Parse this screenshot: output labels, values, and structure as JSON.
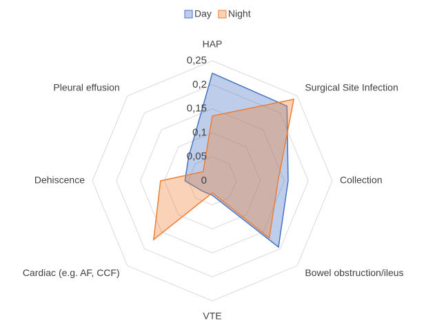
{
  "chart_data": {
    "type": "radar",
    "categories": [
      "HAP",
      "Surgical Site Infection",
      "Collection",
      "Bowel obstruction/ileus",
      "VTE",
      "Cardiac (e.g. AF, CCF)",
      "Dehiscence",
      "Pleural effusion"
    ],
    "series": [
      {
        "name": "Day",
        "color": "#4472c4",
        "values": [
          0.224,
          0.22,
          0.158,
          0.195,
          0.03,
          0.03,
          0.057,
          0.07
        ]
      },
      {
        "name": "Night",
        "color": "#ed7d31",
        "values": [
          0.135,
          0.24,
          0.137,
          0.168,
          0.025,
          0.173,
          0.108,
          0.027
        ]
      }
    ],
    "ylim": [
      0,
      0.25
    ],
    "yticks": [
      0,
      {
        "value": 0.05,
        "label": "0,05"
      },
      {
        "value": 0.1,
        "label": "0,1"
      },
      {
        "value": 0.15,
        "label": "0,15"
      },
      {
        "value": 0.2,
        "label": "0,2"
      },
      {
        "value": 0.25,
        "label": "0,25"
      }
    ],
    "grid": true,
    "legend": "top"
  }
}
